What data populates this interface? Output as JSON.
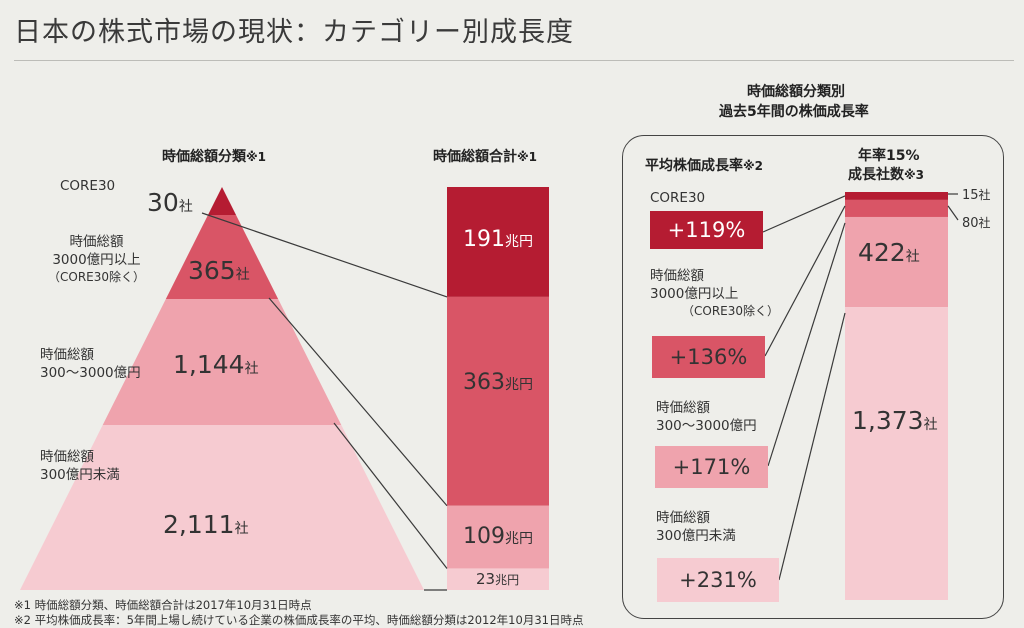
{
  "title": "日本の株式市場の現状：カテゴリー別成長度",
  "colors": {
    "darkest": "#b51c32",
    "dark": "#d95566",
    "mid": "#efa3ad",
    "light": "#f6cbd1",
    "lightest": "#fbe3e6",
    "line": "#3a3a3a"
  },
  "headers": {
    "pyramid": "時価総額分類",
    "pyramid_note": "※1",
    "bar": "時価総額合計",
    "bar_note": "※1",
    "right_title_line1": "時価総額分類別",
    "right_title_line2": "過去5年間の株価成長率",
    "rate": "平均株価成長率",
    "rate_note": "※2",
    "count_line1": "年率15%",
    "count_line2": "成長社数",
    "count_note": "※3"
  },
  "categories": [
    {
      "label_lines": [
        "CORE30"
      ],
      "companies": "30",
      "unit_sha": "社"
    },
    {
      "label_lines": [
        "時価総額",
        "3000億円以上",
        "（CORE30除く）"
      ],
      "companies": "365",
      "unit_sha": "社"
    },
    {
      "label_lines": [
        "時価総額",
        "300～3000億円"
      ],
      "companies": "1,144",
      "unit_sha": "社"
    },
    {
      "label_lines": [
        "時価総額",
        "300億円未満"
      ],
      "companies": "2,111",
      "unit_sha": "社"
    }
  ],
  "units": {
    "cho_yen": "兆円"
  },
  "chart_data": [
    {
      "type": "bar",
      "title": "時価総額分類",
      "categories": [
        "CORE30",
        "時価総額3000億円以上（CORE30除く）",
        "時価総額300～3000億円",
        "時価総額300億円未満"
      ],
      "series": [
        {
          "name": "社数",
          "values": [
            30,
            365,
            1144,
            2111
          ]
        }
      ]
    },
    {
      "type": "bar",
      "title": "時価総額合計",
      "categories": [
        "CORE30",
        "時価総額3000億円以上（CORE30除く）",
        "時価総額300～3000億円",
        "時価総額300億円未満"
      ],
      "series": [
        {
          "name": "兆円",
          "values": [
            191,
            363,
            109,
            23
          ]
        }
      ],
      "labels": [
        "191",
        "363",
        "109",
        "23"
      ]
    },
    {
      "type": "bar",
      "title": "平均株価成長率",
      "categories": [
        "CORE30",
        "時価総額3000億円以上（CORE30除く）",
        "時価総額300～3000億円",
        "時価総額300億円未満"
      ],
      "series": [
        {
          "name": "%",
          "values": [
            119,
            136,
            171,
            231
          ]
        }
      ],
      "labels": [
        "+119%",
        "+136%",
        "+171%",
        "+231%"
      ]
    },
    {
      "type": "bar",
      "title": "年率15%成長社数",
      "categories": [
        "CORE30",
        "時価総額3000億円以上（CORE30除く）",
        "時価総額300～3000億円",
        "時価総額300億円未満"
      ],
      "series": [
        {
          "name": "社",
          "values": [
            15,
            80,
            422,
            1373
          ]
        }
      ],
      "labels": [
        "15",
        "80",
        "422",
        "1,373"
      ]
    }
  ],
  "footnotes": [
    "※1 時価総額分類、時価総額合計は2017年10月31日時点",
    "※2 平均株価成長率：5年間上場し続けている企業の株価成長率の平均、時価総額分類は2012年10月31日時点"
  ]
}
